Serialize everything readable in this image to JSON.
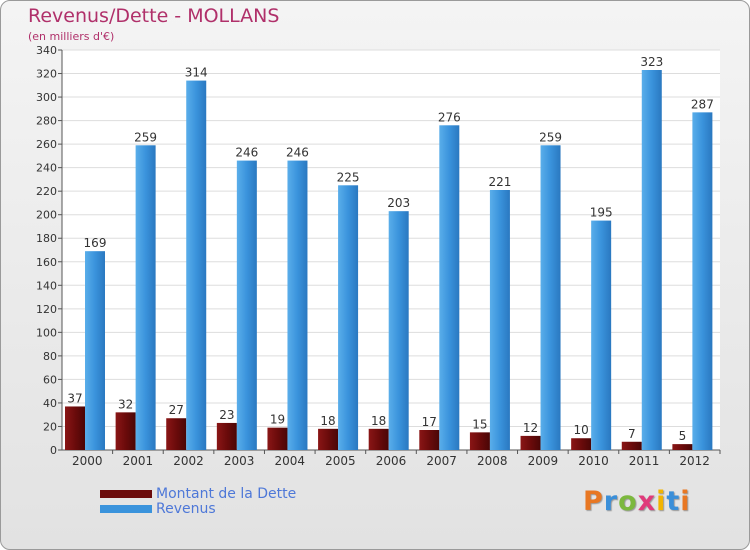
{
  "title": "Revenus/Dette - MOLLANS",
  "subtitle": "(en milliers d'€)",
  "logo": {
    "text": "Proxiti",
    "letters": [
      "P",
      "r",
      "o",
      "x",
      "i",
      "t",
      "i"
    ],
    "colors": [
      "#e87722",
      "#3a8fd9",
      "#7cb83e",
      "#e03a7a",
      "#f2b400",
      "#3a8fd9",
      "#e87722"
    ]
  },
  "legend": [
    {
      "label": "Montant de la Dette",
      "color": "#6b0b0b"
    },
    {
      "label": "Revenus",
      "color": "#3a93dc"
    }
  ],
  "chart_data": {
    "type": "bar",
    "categories": [
      "2000",
      "2001",
      "2002",
      "2003",
      "2004",
      "2005",
      "2006",
      "2007",
      "2008",
      "2009",
      "2010",
      "2011",
      "2012"
    ],
    "series": [
      {
        "name": "Montant de la Dette",
        "values": [
          37,
          32,
          27,
          23,
          19,
          18,
          18,
          17,
          15,
          12,
          10,
          7,
          5
        ],
        "color": "#6b0b0b"
      },
      {
        "name": "Revenus",
        "values": [
          169,
          259,
          314,
          246,
          246,
          225,
          203,
          276,
          221,
          259,
          195,
          323,
          287
        ],
        "color": "#3a93dc"
      }
    ],
    "ylim": [
      0,
      340
    ],
    "yticks": [
      0,
      20,
      40,
      60,
      80,
      100,
      120,
      140,
      160,
      180,
      200,
      220,
      240,
      260,
      280,
      300,
      320,
      340
    ],
    "grid": true,
    "xlabel": "",
    "ylabel": ""
  }
}
